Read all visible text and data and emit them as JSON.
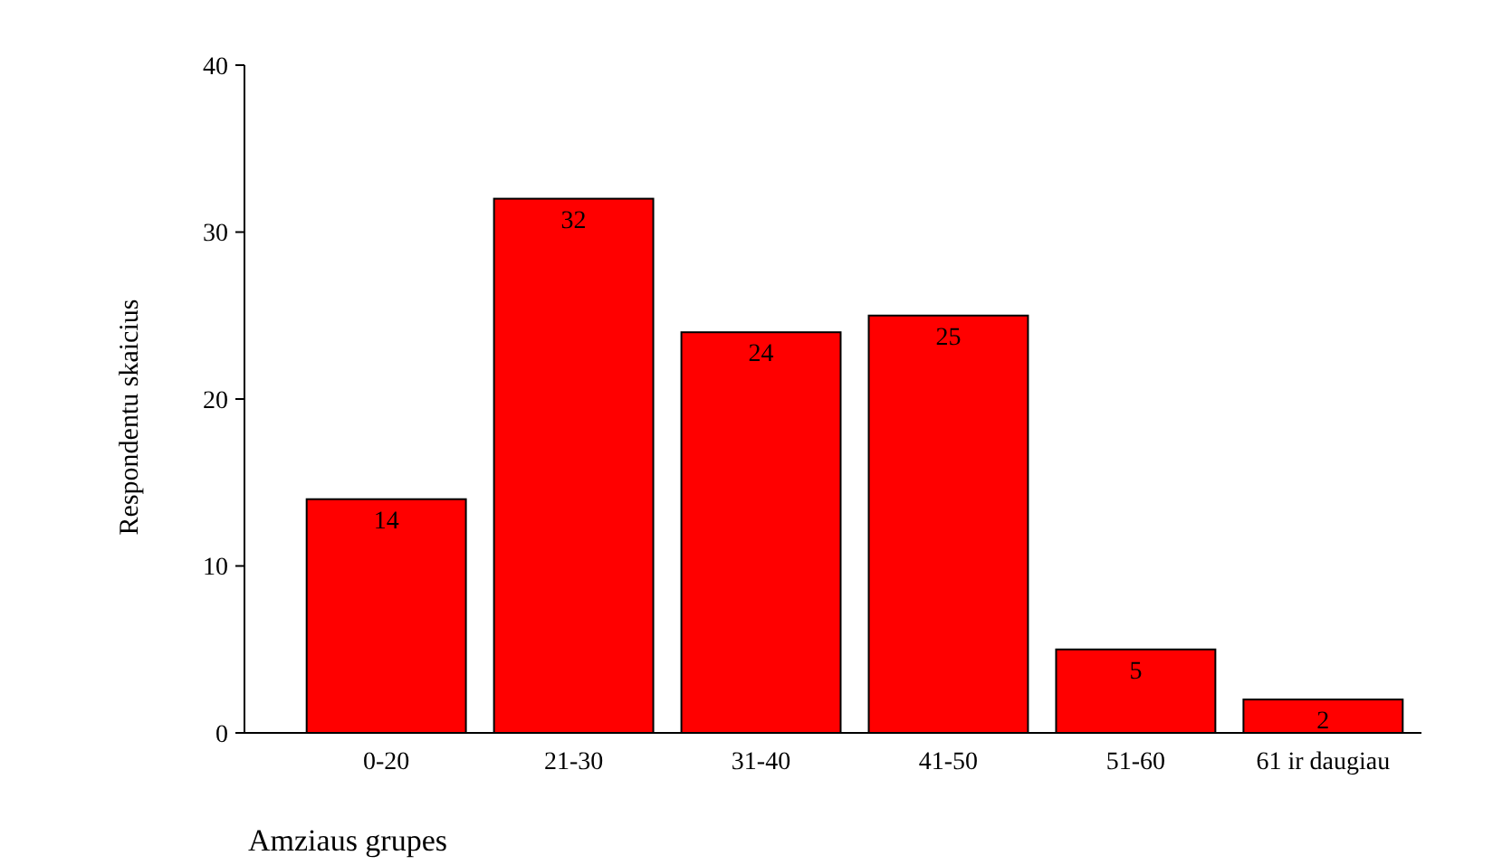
{
  "chart_data": {
    "type": "bar",
    "xlabel": "Amziaus grupes",
    "ylabel": "Respondentu skaicius",
    "categories": [
      "0-20",
      "21-30",
      "31-40",
      "41-50",
      "51-60",
      "61 ir daugiau"
    ],
    "values": [
      14,
      32,
      24,
      25,
      5,
      2
    ],
    "color": "#ff0000",
    "ylim": [
      0,
      40
    ],
    "yticks": [
      0,
      10,
      20,
      30,
      40
    ],
    "grid": false,
    "data_labels": true
  }
}
